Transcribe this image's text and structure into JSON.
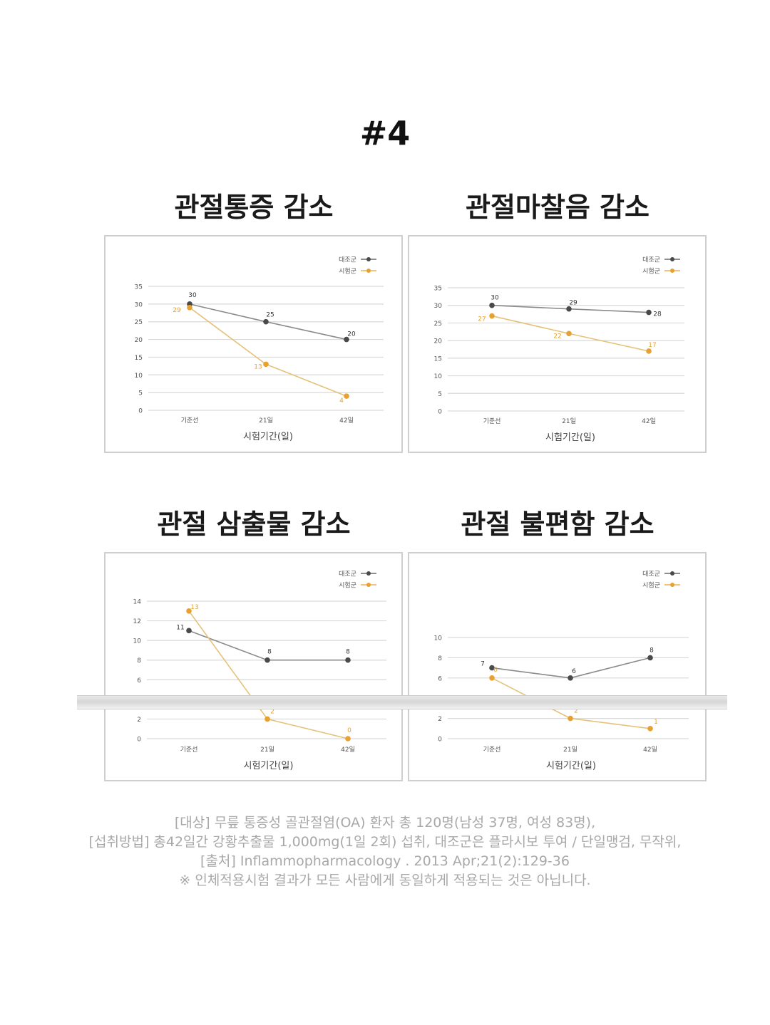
{
  "heading": "#4",
  "colors": {
    "control": "#4a4a4a",
    "test": "#e8a030",
    "grid": "#d9d9d9",
    "text": "#555555"
  },
  "chart_data": [
    {
      "type": "line",
      "title": "관절통증 감소",
      "xlabel": "시험기간(일)",
      "ylabel": "",
      "categories": [
        "기준선",
        "21일",
        "42일"
      ],
      "ylim": [
        0,
        35
      ],
      "yticks": [
        0,
        5,
        10,
        15,
        20,
        25,
        30,
        35
      ],
      "grid": true,
      "legend_position": "top-right",
      "series": [
        {
          "name": "대조군",
          "values": [
            30,
            25,
            20
          ],
          "labels": [
            "30",
            "25",
            "20"
          ]
        },
        {
          "name": "시험군",
          "values": [
            29,
            13,
            4
          ],
          "labels": [
            "29",
            "13",
            "4"
          ]
        }
      ]
    },
    {
      "type": "line",
      "title": "관절마찰음 감소",
      "xlabel": "시험기간(일)",
      "ylabel": "",
      "categories": [
        "기준선",
        "21일",
        "42일"
      ],
      "ylim": [
        0,
        35
      ],
      "yticks": [
        0,
        5,
        10,
        15,
        20,
        25,
        30,
        35
      ],
      "grid": true,
      "legend_position": "top-right",
      "series": [
        {
          "name": "대조군",
          "values": [
            30,
            29,
            28
          ],
          "labels": [
            "30",
            "29",
            "28"
          ]
        },
        {
          "name": "시험군",
          "values": [
            27,
            22,
            17
          ],
          "labels": [
            "27",
            "22",
            "17"
          ]
        }
      ]
    },
    {
      "type": "line",
      "title": "관절 삼출물 감소",
      "xlabel": "시험기간(일)",
      "ylabel": "",
      "categories": [
        "기준선",
        "21일",
        "42일"
      ],
      "ylim": [
        0,
        14
      ],
      "yticks": [
        0,
        2,
        4,
        6,
        8,
        10,
        12,
        14
      ],
      "grid": true,
      "legend_position": "top-right",
      "series": [
        {
          "name": "대조군",
          "values": [
            11,
            8,
            8
          ],
          "labels": [
            "11",
            "8",
            "8"
          ]
        },
        {
          "name": "시험군",
          "values": [
            13,
            2,
            0
          ],
          "labels": [
            "13",
            "2",
            "0"
          ]
        }
      ]
    },
    {
      "type": "line",
      "title": "관절 불편함 감소",
      "xlabel": "시험기간(일)",
      "ylabel": "",
      "categories": [
        "기준선",
        "21일",
        "42일"
      ],
      "ylim": [
        0,
        10
      ],
      "yticks": [
        0,
        2,
        4,
        6,
        8,
        10
      ],
      "grid": true,
      "legend_position": "top-right",
      "series": [
        {
          "name": "대조군",
          "values": [
            7,
            6,
            8
          ],
          "labels": [
            "7",
            "6",
            "8"
          ]
        },
        {
          "name": "시험군",
          "values": [
            6,
            2,
            1
          ],
          "labels": [
            "6",
            "2",
            "1"
          ]
        }
      ]
    }
  ],
  "footnote": [
    "[대상] 무릎 통증성 골관절염(OA) 환자 총 120명(남성 37명, 여성 83명),",
    "[섭취방법] 총42일간 강황추출물 1,000mg(1일 2회) 섭취, 대조군은 플라시보 투여 / 단일맹검, 무작위,",
    "[출처] Inflammopharmacology . 2013 Apr;21(2):129-36",
    "※ 인체적용시험 결과가 모든 사람에게 동일하게 적용되는 것은 아닙니다."
  ]
}
